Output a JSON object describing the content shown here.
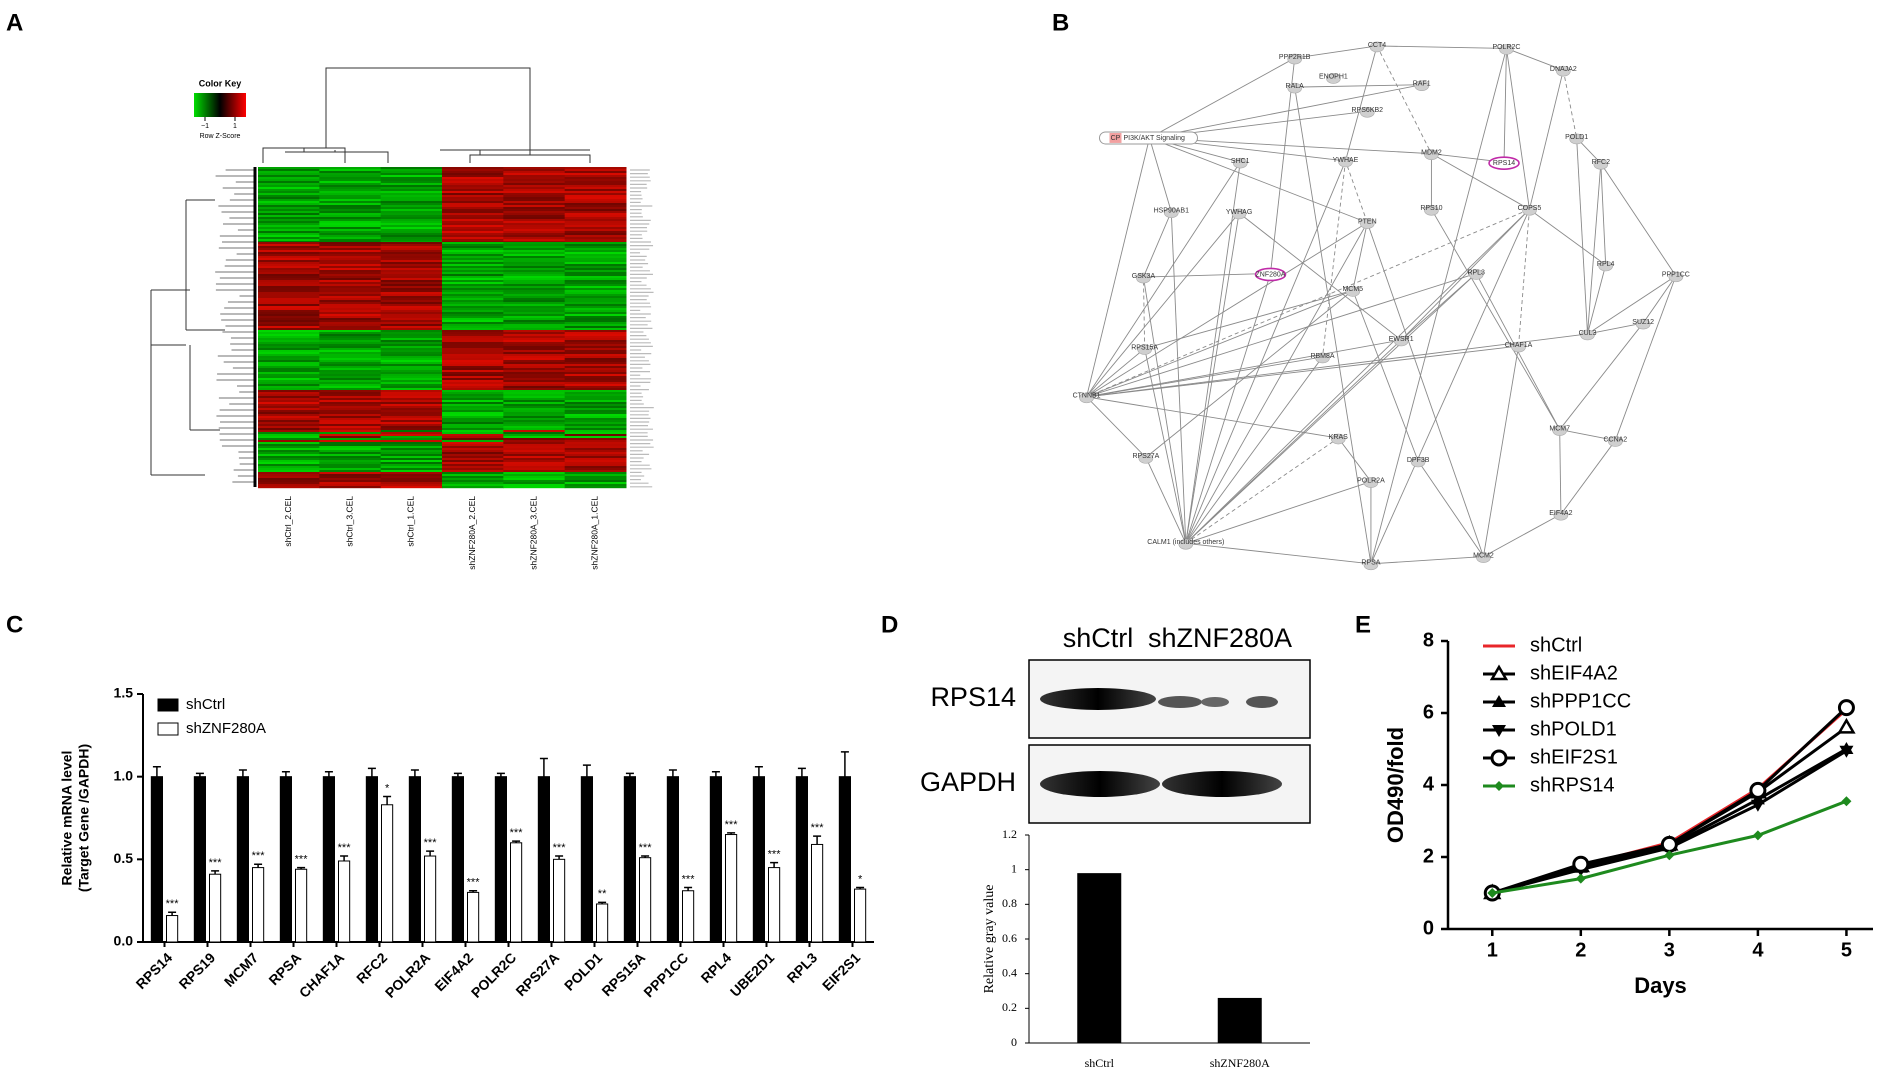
{
  "panel_labels": [
    "A",
    "B",
    "C",
    "D",
    "E"
  ],
  "heatmap": {
    "color_key_title": "Color Key",
    "color_key_label": "Row Z-Score",
    "color_key_ticks": [
      {
        "value": -1,
        "label": "−1"
      },
      1
    ],
    "columns": [
      "shCtrl_2.CEL",
      "shCtrl_3.CEL",
      "shCtrl_1.CEL",
      "shZNF280A_2.CEL",
      "shZNF280A_3.CEL",
      "shZNF280A_1.CEL"
    ]
  },
  "network": {
    "pathway_tag": "CP",
    "nodes": [
      "PPP2R1B",
      "CCT4",
      "POLR2C",
      "DNAJA2",
      "RALA",
      "ENOPH1",
      "RAF1",
      "RPS6KB2",
      "POLD1",
      "PI3K/AKT Signaling",
      "SHC1",
      "YWHAE",
      "MDM2",
      "RPS14",
      "RFC2",
      "HSP90AB1",
      "YWHAG",
      "PTEN",
      "RPS10",
      "COPS5",
      "ZNF280A",
      "MCM5",
      "RPL3",
      "RPL4",
      "PPP1CC",
      "GSK3A",
      "RPS15A",
      "EWSR1",
      "CHAF1A",
      "CUL3",
      "SUZ12",
      "RBM8A",
      "CTNNB1",
      "KRAS",
      "DPF3B",
      "MCM7",
      "CCNA2",
      "RPS27A",
      "POLR2A",
      "EIF4A2",
      "CALM1 (includes others)",
      "RPSA",
      "MCM2"
    ]
  },
  "blot": {
    "columns": [
      "shCtrl",
      "shZNF280A"
    ],
    "rows": [
      "RPS14",
      "GAPDH"
    ]
  },
  "chart_data": [
    {
      "type": "bar",
      "ylabel": [
        "Relative mRNA level",
        "(Target Gene /GAPDH)"
      ],
      "categories": [
        "RPS14",
        "RPS19",
        "MCM7",
        "RPSA",
        "CHAF1A",
        "RFC2",
        "POLR2A",
        "EIF4A2",
        "POLR2C",
        "RPS27A",
        "POLD1",
        "RPS15A",
        "PPP1CC",
        "RPL4",
        "UBE2D1",
        "RPL3",
        "EIF2S1"
      ],
      "series": [
        {
          "name": "shCtrl",
          "color": "#000000",
          "values": [
            1.0,
            1.0,
            1.0,
            1.0,
            1.0,
            1.0,
            1.0,
            1.0,
            1.0,
            1.0,
            1.0,
            1.0,
            1.0,
            1.0,
            1.0,
            1.0,
            1.0
          ],
          "errors": [
            0.06,
            0.02,
            0.04,
            0.03,
            0.03,
            0.05,
            0.04,
            0.02,
            0.02,
            0.11,
            0.07,
            0.02,
            0.04,
            0.03,
            0.06,
            0.05,
            0.15
          ]
        },
        {
          "name": "shZNF280A",
          "color": "#ffffff",
          "values": [
            0.16,
            0.41,
            0.45,
            0.44,
            0.49,
            0.83,
            0.52,
            0.3,
            0.6,
            0.5,
            0.23,
            0.51,
            0.31,
            0.65,
            0.45,
            0.59,
            0.32
          ],
          "errors": [
            0.02,
            0.02,
            0.02,
            0.01,
            0.03,
            0.05,
            0.03,
            0.01,
            0.01,
            0.02,
            0.01,
            0.01,
            0.02,
            0.01,
            0.03,
            0.05,
            0.01
          ],
          "annotations": [
            "***",
            "***",
            "***",
            "***",
            "***",
            "*",
            "***",
            "***",
            "***",
            "***",
            "**",
            "***",
            "***",
            "***",
            "***",
            "***",
            "*"
          ]
        }
      ],
      "ylim": [
        0,
        1.5
      ],
      "yticks": [
        {
          "value": 0,
          "label": "0.0"
        },
        0.5,
        {
          "value": 1,
          "label": "1.0"
        },
        1.5
      ],
      "legend": "top-left"
    },
    {
      "type": "bar",
      "ylabel": "Relative gray value",
      "categories": [
        "shCtrl",
        "shZNF280A"
      ],
      "values": [
        0.98,
        0.26
      ],
      "color": "#000000",
      "ylim": [
        0,
        1.2
      ],
      "yticks": [
        0,
        0.2,
        0.4,
        0.6,
        0.8,
        1,
        1.2
      ]
    },
    {
      "type": "line",
      "xlabel": "Days",
      "ylabel": "OD490/fold",
      "x": [
        1,
        2,
        3,
        4,
        5
      ],
      "series": [
        {
          "name": "shCtrl",
          "color": "#e8262a",
          "marker": "none",
          "values": [
            1.0,
            1.75,
            2.4,
            3.9,
            6.1
          ]
        },
        {
          "name": "shEIF4A2",
          "color": "#000000",
          "marker": "triangle-open",
          "values": [
            1.0,
            1.75,
            2.35,
            3.8,
            5.6
          ]
        },
        {
          "name": "shPPP1CC",
          "color": "#000000",
          "marker": "triangle",
          "values": [
            1.0,
            1.7,
            2.3,
            3.6,
            5.0
          ]
        },
        {
          "name": "shPOLD1",
          "color": "#000000",
          "marker": "triangle-down",
          "values": [
            1.0,
            1.65,
            2.25,
            3.45,
            4.95
          ]
        },
        {
          "name": "shEIF2S1",
          "color": "#000000",
          "marker": "circle-open",
          "values": [
            1.0,
            1.8,
            2.35,
            3.85,
            6.15
          ]
        },
        {
          "name": "shRPS14",
          "color": "#1e8a1e",
          "marker": "diamond",
          "values": [
            1.0,
            1.4,
            2.05,
            2.6,
            3.55
          ]
        }
      ],
      "xlim": [
        0.5,
        5.3
      ],
      "xticks": [
        1,
        2,
        3,
        4,
        5
      ],
      "ylim": [
        0,
        8
      ],
      "yticks": [
        0,
        2,
        4,
        6,
        8
      ],
      "legend": "top-left"
    }
  ]
}
